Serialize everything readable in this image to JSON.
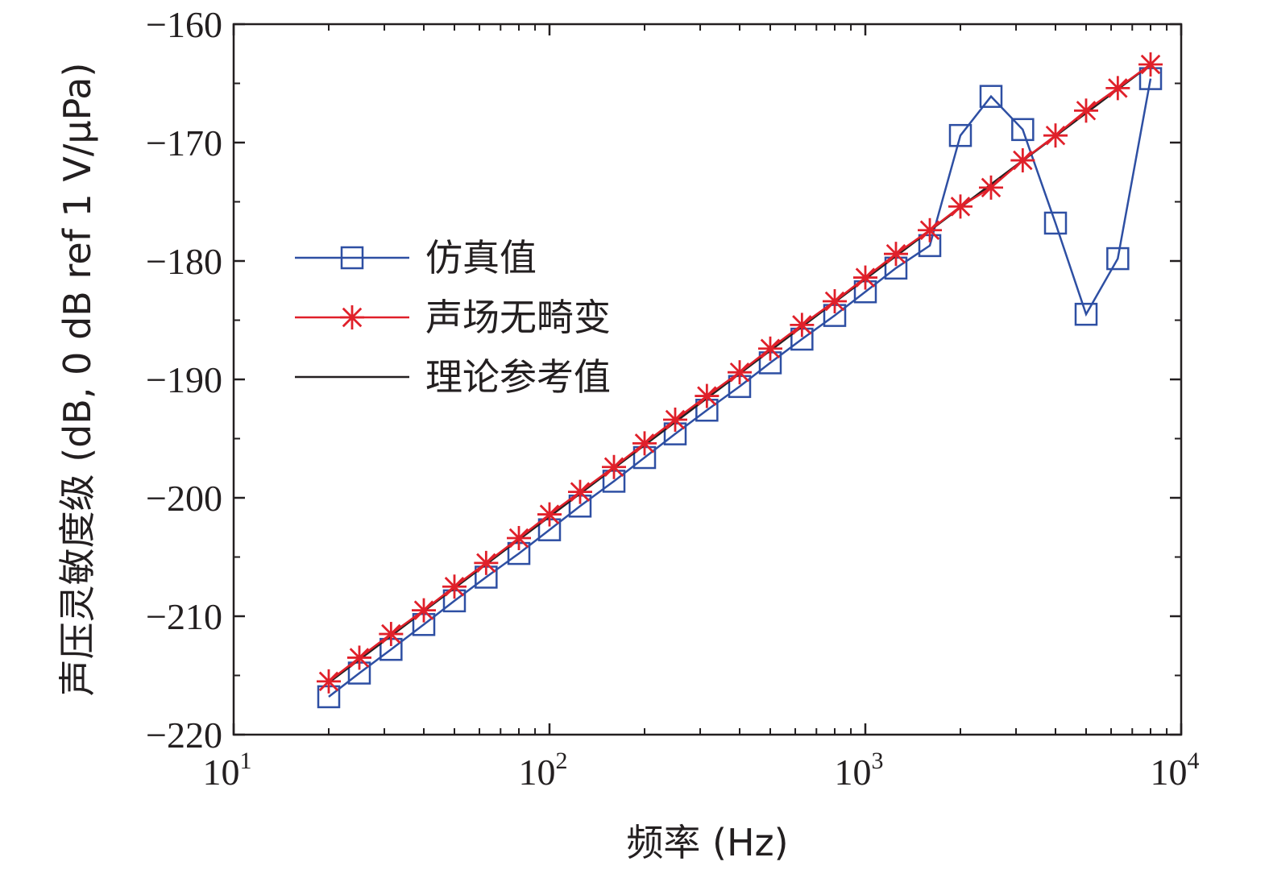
{
  "chart_data": {
    "type": "line",
    "xlabel": "频率 (Hz)",
    "ylabel": "声压灵敏度级 (dB, 0 dB ref 1 V/μPa)",
    "xscale": "log",
    "xlim": [
      10,
      10000
    ],
    "ylim": [
      -220,
      -160
    ],
    "yticks": [
      -220,
      -210,
      -200,
      -190,
      -180,
      -170,
      -160
    ],
    "yticklabels": [
      "−220",
      "−210",
      "−200",
      "−190",
      "−180",
      "−170",
      "−160"
    ],
    "xticks": [
      10,
      100,
      1000,
      10000
    ],
    "xticklabels": [
      {
        "base": "10",
        "exp": "1"
      },
      {
        "base": "10",
        "exp": "2"
      },
      {
        "base": "10",
        "exp": "3"
      },
      {
        "base": "10",
        "exp": "4"
      }
    ],
    "grid": false,
    "legend_position": "center-left",
    "series": [
      {
        "name": "仿真值",
        "color": "#2e4fa3",
        "marker": "square",
        "x": [
          20,
          25,
          31.5,
          40,
          50,
          63,
          80,
          100,
          125,
          160,
          200,
          250,
          315,
          400,
          500,
          630,
          800,
          1000,
          1250,
          1600,
          2000,
          2500,
          3150,
          4000,
          5000,
          6300,
          8000
        ],
        "y": [
          -216.8,
          -214.8,
          -212.8,
          -210.7,
          -208.7,
          -206.7,
          -204.7,
          -202.7,
          -200.7,
          -198.6,
          -196.6,
          -194.6,
          -192.6,
          -190.6,
          -188.6,
          -186.6,
          -184.6,
          -182.6,
          -180.6,
          -178.7,
          -169.4,
          -166.1,
          -168.9,
          -176.8,
          -184.5,
          -179.8,
          -164.6
        ]
      },
      {
        "name": "声场无畸变",
        "color": "#e0202a",
        "marker": "asterisk",
        "x": [
          20,
          25,
          31.5,
          40,
          50,
          63,
          80,
          100,
          125,
          160,
          200,
          250,
          315,
          400,
          500,
          630,
          800,
          1000,
          1250,
          1600,
          2000,
          2500,
          3150,
          4000,
          5000,
          6300,
          8000
        ],
        "y": [
          -215.5,
          -213.5,
          -211.5,
          -209.5,
          -207.5,
          -205.5,
          -203.4,
          -201.4,
          -199.5,
          -197.4,
          -195.4,
          -193.4,
          -191.4,
          -189.4,
          -187.4,
          -185.4,
          -183.4,
          -181.4,
          -179.4,
          -177.4,
          -175.4,
          -173.8,
          -171.5,
          -169.4,
          -167.3,
          -165.4,
          -163.4
        ]
      },
      {
        "name": "理论参考值",
        "color": "#231f20",
        "marker": "none",
        "x": [
          20,
          8000
        ],
        "y": [
          -215.6,
          -163.4
        ]
      }
    ]
  }
}
